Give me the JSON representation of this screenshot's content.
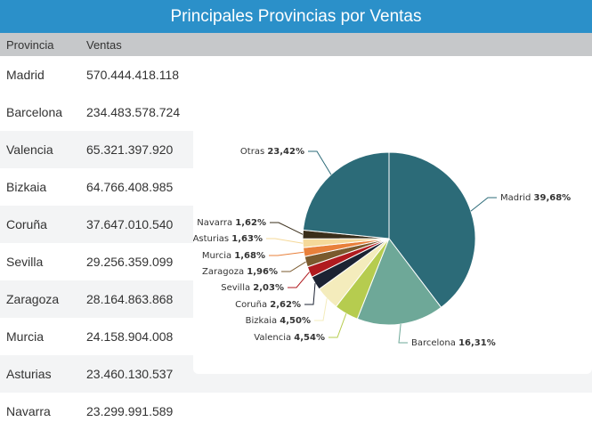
{
  "header": {
    "title": "Principales Provincias por Ventas"
  },
  "table": {
    "columns": [
      "Provincia",
      "Ventas"
    ],
    "rows": [
      {
        "provincia": "Madrid",
        "ventas": "570.444.418.118"
      },
      {
        "provincia": "Barcelona",
        "ventas": "234.483.578.724"
      },
      {
        "provincia": "Valencia",
        "ventas": "65.321.397.920"
      },
      {
        "provincia": "Bizkaia",
        "ventas": "64.766.408.985"
      },
      {
        "provincia": "Coruña",
        "ventas": "37.647.010.540"
      },
      {
        "provincia": "Sevilla",
        "ventas": "29.256.359.099"
      },
      {
        "provincia": "Zaragoza",
        "ventas": "28.164.863.868"
      },
      {
        "provincia": "Murcia",
        "ventas": "24.158.904.008"
      },
      {
        "provincia": "Asturias",
        "ventas": "23.460.130.537"
      },
      {
        "provincia": "Navarra",
        "ventas": "23.299.991.589"
      }
    ]
  },
  "chart_data": {
    "type": "pie",
    "slices": [
      {
        "label": "Madrid",
        "pct_text": "39,68%",
        "value": 39.68,
        "color": "#2c6b78"
      },
      {
        "label": "Barcelona",
        "pct_text": "16,31%",
        "value": 16.31,
        "color": "#6ea898"
      },
      {
        "label": "Valencia",
        "pct_text": "4,54%",
        "value": 4.54,
        "color": "#b6cc4f"
      },
      {
        "label": "Bizkaia",
        "pct_text": "4,50%",
        "value": 4.5,
        "color": "#f4ecbc"
      },
      {
        "label": "Coruña",
        "pct_text": "2,62%",
        "value": 2.62,
        "color": "#1c2333"
      },
      {
        "label": "Sevilla",
        "pct_text": "2,03%",
        "value": 2.03,
        "color": "#b01a1f"
      },
      {
        "label": "Zaragoza",
        "pct_text": "1,96%",
        "value": 1.96,
        "color": "#7a5a2e"
      },
      {
        "label": "Murcia",
        "pct_text": "1,68%",
        "value": 1.68,
        "color": "#e8803b"
      },
      {
        "label": "Asturias",
        "pct_text": "1,63%",
        "value": 1.63,
        "color": "#f5d99a"
      },
      {
        "label": "Navarra",
        "pct_text": "1,62%",
        "value": 1.62,
        "color": "#3a2e1a"
      },
      {
        "label": "Otras",
        "pct_text": "23,42%",
        "value": 23.42,
        "color": "#2c6b78"
      }
    ]
  }
}
